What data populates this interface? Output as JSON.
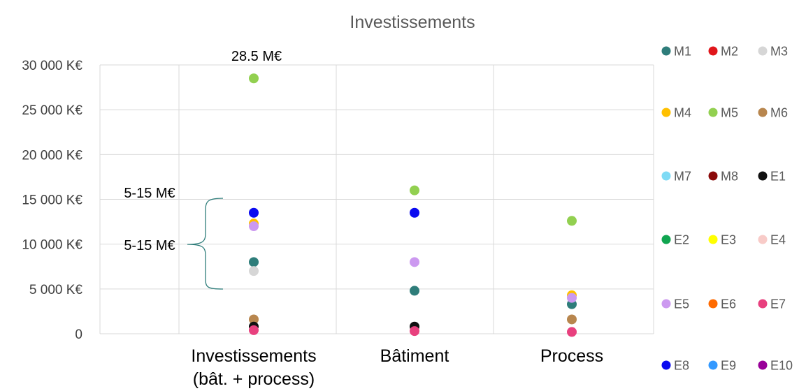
{
  "chart_data": {
    "type": "scatter",
    "title": "Investissements",
    "xlabel": "",
    "ylabel": "",
    "categories": [
      "Investissements (bât. + process)",
      "Bâtiment",
      "Process"
    ],
    "category_lines": [
      [
        "Investissements",
        "(bât. + process)"
      ],
      [
        "Bâtiment"
      ],
      [
        "Process"
      ]
    ],
    "ylim": [
      0,
      30000
    ],
    "yticks": [
      {
        "value": 0,
        "label": "0"
      },
      {
        "value": 5000,
        "label": "5 000 K€"
      },
      {
        "value": 10000,
        "label": "10 000 K€"
      },
      {
        "value": 15000,
        "label": "15 000 K€"
      },
      {
        "value": 20000,
        "label": "20 000 K€"
      },
      {
        "value": 25000,
        "label": "25 000 K€"
      },
      {
        "value": 30000,
        "label": "30 000 K€"
      }
    ],
    "grid": true,
    "legend_position": "right",
    "series": [
      {
        "name": "M1",
        "color": "#2E7D7A",
        "values": [
          8000,
          4800,
          3300
        ]
      },
      {
        "name": "M2",
        "color": "#E0161B",
        "values": [
          null,
          null,
          null
        ]
      },
      {
        "name": "M3",
        "color": "#D6D6D6",
        "values": [
          7000,
          null,
          null
        ]
      },
      {
        "name": "M4",
        "color": "#FFC000",
        "values": [
          12300,
          null,
          4300
        ]
      },
      {
        "name": "M5",
        "color": "#92D050",
        "values": [
          28500,
          16000,
          12600
        ]
      },
      {
        "name": "M6",
        "color": "#B8864E",
        "values": [
          1600,
          null,
          1600
        ]
      },
      {
        "name": "M7",
        "color": "#7FDBF5",
        "values": [
          null,
          null,
          null
        ]
      },
      {
        "name": "M8",
        "color": "#8B0A0A",
        "values": [
          null,
          null,
          null
        ]
      },
      {
        "name": "E1",
        "color": "#111111",
        "values": [
          800,
          800,
          null
        ]
      },
      {
        "name": "E2",
        "color": "#10A550",
        "values": [
          null,
          null,
          null
        ]
      },
      {
        "name": "E3",
        "color": "#FFFF00",
        "values": [
          null,
          null,
          null
        ]
      },
      {
        "name": "E4",
        "color": "#F8CBC8",
        "values": [
          null,
          null,
          null
        ]
      },
      {
        "name": "E5",
        "color": "#CC99F0",
        "values": [
          12000,
          8000,
          4000
        ]
      },
      {
        "name": "E6",
        "color": "#FF6A00",
        "values": [
          null,
          null,
          null
        ]
      },
      {
        "name": "E7",
        "color": "#E8407E",
        "values": [
          400,
          300,
          200
        ]
      },
      {
        "name": "E8",
        "color": "#0A0AF0",
        "values": [
          13500,
          13500,
          null
        ]
      },
      {
        "name": "E9",
        "color": "#3399FF",
        "values": [
          null,
          null,
          null
        ]
      },
      {
        "name": "E10",
        "color": "#990099",
        "values": [
          null,
          null,
          null
        ]
      }
    ],
    "annotations": [
      {
        "text": "28.5 M€"
      },
      {
        "text": "5-15 M€"
      },
      {
        "text": "5-15 M€"
      }
    ]
  }
}
